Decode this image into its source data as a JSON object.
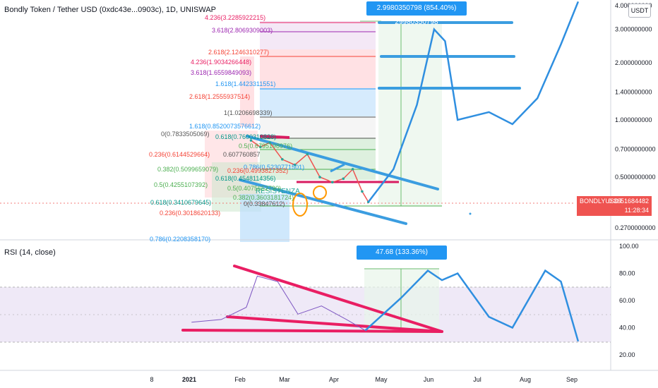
{
  "header": {
    "title": "Bondly Token / Tether USD (0xdc43e...0903c), 1D, UNISWAP",
    "currency": "USDT"
  },
  "price_badge": {
    "symbol": "BONDLYUSDT",
    "value": "0.3651684482",
    "countdown": "11:28:34",
    "color": "#ef5350"
  },
  "measure_top": {
    "text": "2.9980350798 (854.40%) 29980350798",
    "color": "#2196f3"
  },
  "rsi_panel": {
    "title": "RSI (14, close)",
    "measure_text": "47.68 (133.36%) 476820336508",
    "band_color": "#e1bee7"
  },
  "price_axis": [
    "4.000000000",
    "3.000000000",
    "2.000000000",
    "1.400000000",
    "1.000000000",
    "0.7000000000",
    "0.5000000000",
    "0.2700000000"
  ],
  "rsi_axis": [
    "100.00",
    "80.00",
    "60.00",
    "40.00",
    "20.00"
  ],
  "time_axis": [
    "8",
    "2021",
    "Feb",
    "Mar",
    "Apr",
    "May",
    "Jun",
    "Jul",
    "Aug",
    "Sep"
  ],
  "annotation": "RESISTENZA",
  "fib_levels": [
    {
      "text": "4.236(3.2285922215)",
      "color": "#e91e63"
    },
    {
      "text": "3.618(2.8069309003)",
      "color": "#9c27b0"
    },
    {
      "text": "2.618(2.1246310277)",
      "color": "#f44336"
    },
    {
      "text": "4.236(1.9034266448)",
      "color": "#e91e63"
    },
    {
      "text": "1.618(1.4423311551)",
      "color": "#2196f3"
    },
    {
      "text": "3.618(1.6559849093)",
      "color": "#9c27b0"
    },
    {
      "text": "2.618(1.2555937514)",
      "color": "#f44336"
    },
    {
      "text": "1(1.0206698339)",
      "color": "#555555"
    },
    {
      "text": "1.618(0.8520073576612)",
      "color": "#2196f3"
    },
    {
      "text": "0(0.7833505069)",
      "color": "#555555"
    },
    {
      "text": "0.618(0.7600310828)",
      "color": "#009688"
    },
    {
      "text": "0.5(0.6795198976)",
      "color": "#4caf50"
    },
    {
      "text": "0.236(0.6144529664)",
      "color": "#f44336"
    },
    {
      "text": "0.607760857",
      "color": "#555555"
    },
    {
      "text": "0.786(0.5230771501)",
      "color": "#2196f3"
    },
    {
      "text": "0.236(0.4993827352)",
      "color": "#f44336"
    },
    {
      "text": "0.382(0.5099659079)",
      "color": "#4caf50"
    },
    {
      "text": "0.618(0.4548114356)",
      "color": "#009688"
    },
    {
      "text": "0.5(0.4255107392)",
      "color": "#4caf50"
    },
    {
      "text": "0.5(0.4075652790)",
      "color": "#4caf50"
    },
    {
      "text": "0.382(0.3603181724)",
      "color": "#4caf50"
    },
    {
      "text": "0.618(0.3410679645)",
      "color": "#009688"
    },
    {
      "text": "0(0.33847612)",
      "color": "#555555"
    },
    {
      "text": "0.236(0.3018620133)",
      "color": "#f44336"
    },
    {
      "text": "0.786(0.2208358170)",
      "color": "#2196f3"
    }
  ],
  "chart_data": [
    {
      "type": "line",
      "title": "Bondly Token / Tether USD (0xdc43e...0903c), 1D, UNISWAP",
      "y_scale": "log",
      "series": [
        {
          "name": "",
          "x": [
            "Feb 8",
            "Feb 14",
            "Feb 20",
            "Feb 28",
            "Mar 8",
            "Mar 16",
            "Mar 24",
            "Apr 1",
            "Apr 8",
            "Apr 14",
            "Apr 20",
            "Apr 24"
          ],
          "values": [
            0.78,
            0.72,
            0.76,
            0.62,
            0.58,
            0.66,
            0.5,
            0.47,
            0.49,
            0.55,
            0.42,
            0.37
          ]
        }
      ],
      "projection": {
        "x": [
          "Apr 24",
          "May 10",
          "May 25",
          "Jun 5",
          "Jun 12",
          "Jun 20",
          "Jul 10",
          "Jul 25",
          "Aug 10",
          "Aug 25",
          "Sep 5"
        ],
        "values": [
          0.37,
          0.55,
          1.2,
          3.0,
          2.6,
          1.0,
          1.1,
          0.95,
          1.3,
          2.5,
          4.2
        ]
      },
      "ylim": [
        0.19,
        4.3
      ],
      "current_price": 0.3651684482
    },
    {
      "type": "line",
      "title": "RSI (14, close)",
      "series": [
        {
          "name": "",
          "x": [
            "Jan 1",
            "Jan 20",
            "Feb 5",
            "Feb 12",
            "Feb 25",
            "Mar 10",
            "Mar 25",
            "Apr 10",
            "Apr 22"
          ],
          "values": [
            44,
            46,
            55,
            78,
            74,
            50,
            56,
            46,
            38
          ]
        }
      ],
      "projection": {
        "x": [
          "Apr 22",
          "May 15",
          "Jun 1",
          "Jun 10",
          "Jun 20",
          "Jul 10",
          "Jul 25",
          "Aug 15",
          "Aug 25",
          "Sep 5"
        ],
        "values": [
          38,
          62,
          82,
          75,
          80,
          48,
          40,
          82,
          74,
          30
        ]
      },
      "ylim": [
        10,
        100
      ],
      "band": [
        30,
        70
      ],
      "band_mid": 50
    }
  ]
}
